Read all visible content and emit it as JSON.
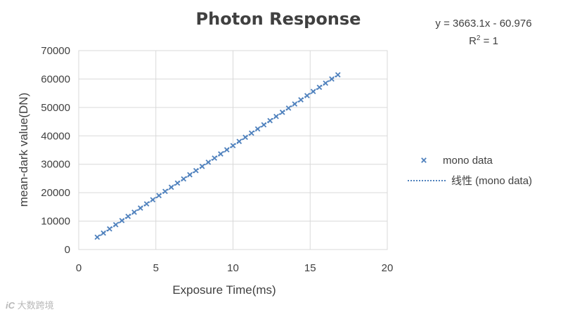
{
  "chart_data": {
    "type": "scatter",
    "title": "Photon Response",
    "xlabel": "Exposure Time(ms)",
    "ylabel": "mean-dark value(DN)",
    "xlim": [
      0,
      20
    ],
    "ylim": [
      0,
      70000
    ],
    "x_ticks": [
      "0",
      "5",
      "10",
      "15",
      "20"
    ],
    "y_ticks": [
      "0",
      "10000",
      "20000",
      "30000",
      "40000",
      "50000",
      "60000",
      "70000"
    ],
    "grid": true,
    "legend_position": "right",
    "series": [
      {
        "name": "mono data",
        "marker": "x",
        "color": "#4f81bd",
        "x": [
          1.2,
          1.6,
          2.0,
          2.4,
          2.8,
          3.2,
          3.6,
          4.0,
          4.4,
          4.8,
          5.2,
          5.6,
          6.0,
          6.4,
          6.8,
          7.2,
          7.6,
          8.0,
          8.4,
          8.8,
          9.2,
          9.6,
          10.0,
          10.4,
          10.8,
          11.2,
          11.6,
          12.0,
          12.4,
          12.8,
          13.2,
          13.6,
          14.0,
          14.4,
          14.8,
          15.2,
          15.6,
          16.0,
          16.4,
          16.8
        ],
        "y": [
          4335,
          5800,
          7265,
          8730,
          10196,
          11661,
          13126,
          14591,
          16056,
          17522,
          18987,
          20452,
          21917,
          23383,
          24848,
          26313,
          27778,
          29244,
          30709,
          32174,
          33639,
          35104,
          36570,
          38035,
          39500,
          40965,
          42431,
          43896,
          45361,
          46826,
          48292,
          49757,
          51222,
          52687,
          54152,
          55618,
          57083,
          58548,
          60013,
          61479
        ]
      }
    ],
    "trendline": {
      "name": "线性 (mono data)",
      "type": "linear",
      "slope": 3663.1,
      "intercept": -60.976,
      "x_range": [
        1.2,
        16.8
      ],
      "style": "dotted",
      "color": "#4f81bd",
      "equation": "y = 3663.1x - 60.976",
      "r2_label": "R",
      "r2_sup": "2",
      "r2_value": " = 1"
    }
  },
  "legend": {
    "items": [
      {
        "label": "mono data",
        "symbol": "×"
      },
      {
        "label": "线性 (mono data)",
        "symbol": "dotted-line"
      }
    ]
  },
  "watermark": {
    "logo": "iC",
    "text": "大数跨境"
  },
  "colors": {
    "series": "#4f81bd",
    "text": "#404040",
    "grid": "#d9d9d9"
  }
}
